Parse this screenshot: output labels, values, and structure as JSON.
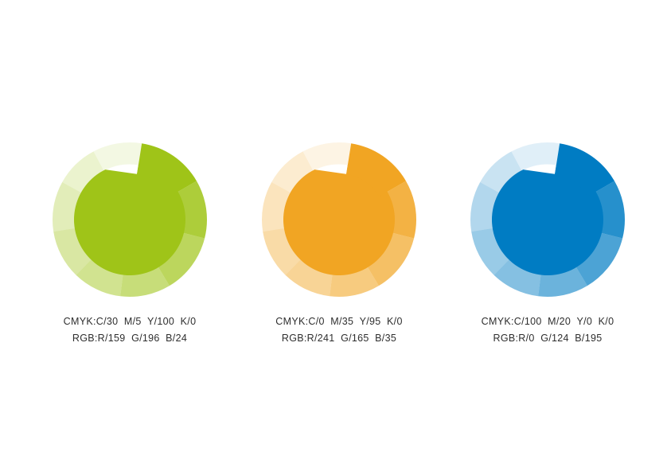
{
  "page": {
    "background": "#ffffff",
    "text_color": "#2e2e2e",
    "description": "Three brand color swatch circles with segmented opacity rings and CMYK/RGB specifications"
  },
  "swatches": [
    {
      "id": "green",
      "hex": "#9FC418",
      "cmyk_label": "CMYK:C/30  M/5  Y/100  K/0",
      "rgb_label": "RGB:R/159  G/196  B/24"
    },
    {
      "id": "orange",
      "hex": "#F1A523",
      "cmyk_label": "CMYK:C/0  M/35  Y/95  K/0",
      "rgb_label": "RGB:R/241  G/165  B/35"
    },
    {
      "id": "blue",
      "hex": "#007CC3",
      "cmyk_label": "CMYK:C/100  M/20  Y/0  K/0",
      "rgb_label": "RGB:R/0  G/124  B/195"
    }
  ],
  "ring": {
    "outer_radius": 97,
    "inner_radius": 70,
    "bite_depth": 12,
    "notch_angle": 9,
    "bite_start_angle": 334,
    "segments": [
      {
        "start": 9,
        "end": 60,
        "opacity": 1
      },
      {
        "start": 60,
        "end": 104,
        "opacity": 0.85
      },
      {
        "start": 104,
        "end": 149,
        "opacity": 0.7
      },
      {
        "start": 149,
        "end": 187,
        "opacity": 0.58
      },
      {
        "start": 187,
        "end": 224,
        "opacity": 0.48
      },
      {
        "start": 224,
        "end": 261,
        "opacity": 0.4
      },
      {
        "start": 261,
        "end": 299,
        "opacity": 0.3
      },
      {
        "start": 299,
        "end": 332,
        "opacity": 0.21
      },
      {
        "start": 332,
        "end": 369,
        "opacity": 0.12
      }
    ]
  }
}
